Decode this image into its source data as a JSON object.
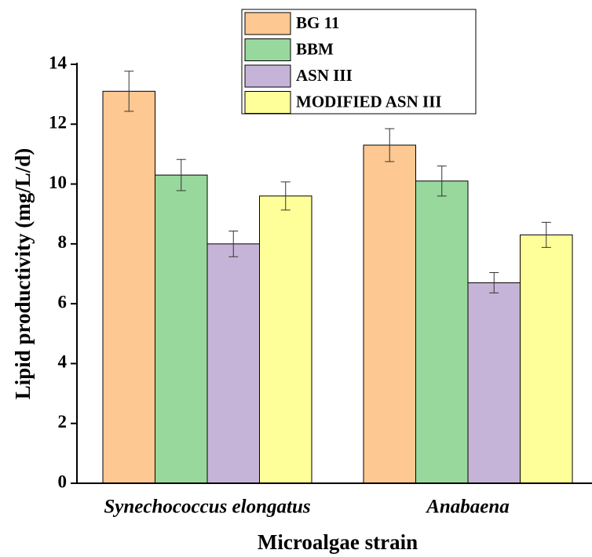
{
  "chart_data": {
    "type": "bar",
    "x_label": "Microalgae strain",
    "y_label": "Lipid productivity (mg/L/d)",
    "categories": [
      "Synechococcus elongatus",
      "Anabaena"
    ],
    "series": [
      {
        "name": "BG 11",
        "color": "#fdc891",
        "values": [
          13.1,
          11.3
        ],
        "errors": [
          0.67,
          0.55
        ]
      },
      {
        "name": "BBM",
        "color": "#98d89c",
        "values": [
          10.3,
          10.1
        ],
        "errors": [
          0.52,
          0.5
        ]
      },
      {
        "name": "ASN III",
        "color": "#c6b4d8",
        "values": [
          8.0,
          6.7
        ],
        "errors": [
          0.43,
          0.34
        ]
      },
      {
        "name": "MODIFIED ASN III",
        "color": "#ffff99",
        "values": [
          9.6,
          8.3
        ],
        "errors": [
          0.47,
          0.42
        ]
      }
    ],
    "ylim": [
      0,
      14
    ],
    "yticks": [
      0,
      2,
      4,
      6,
      8,
      10,
      12,
      14
    ]
  }
}
